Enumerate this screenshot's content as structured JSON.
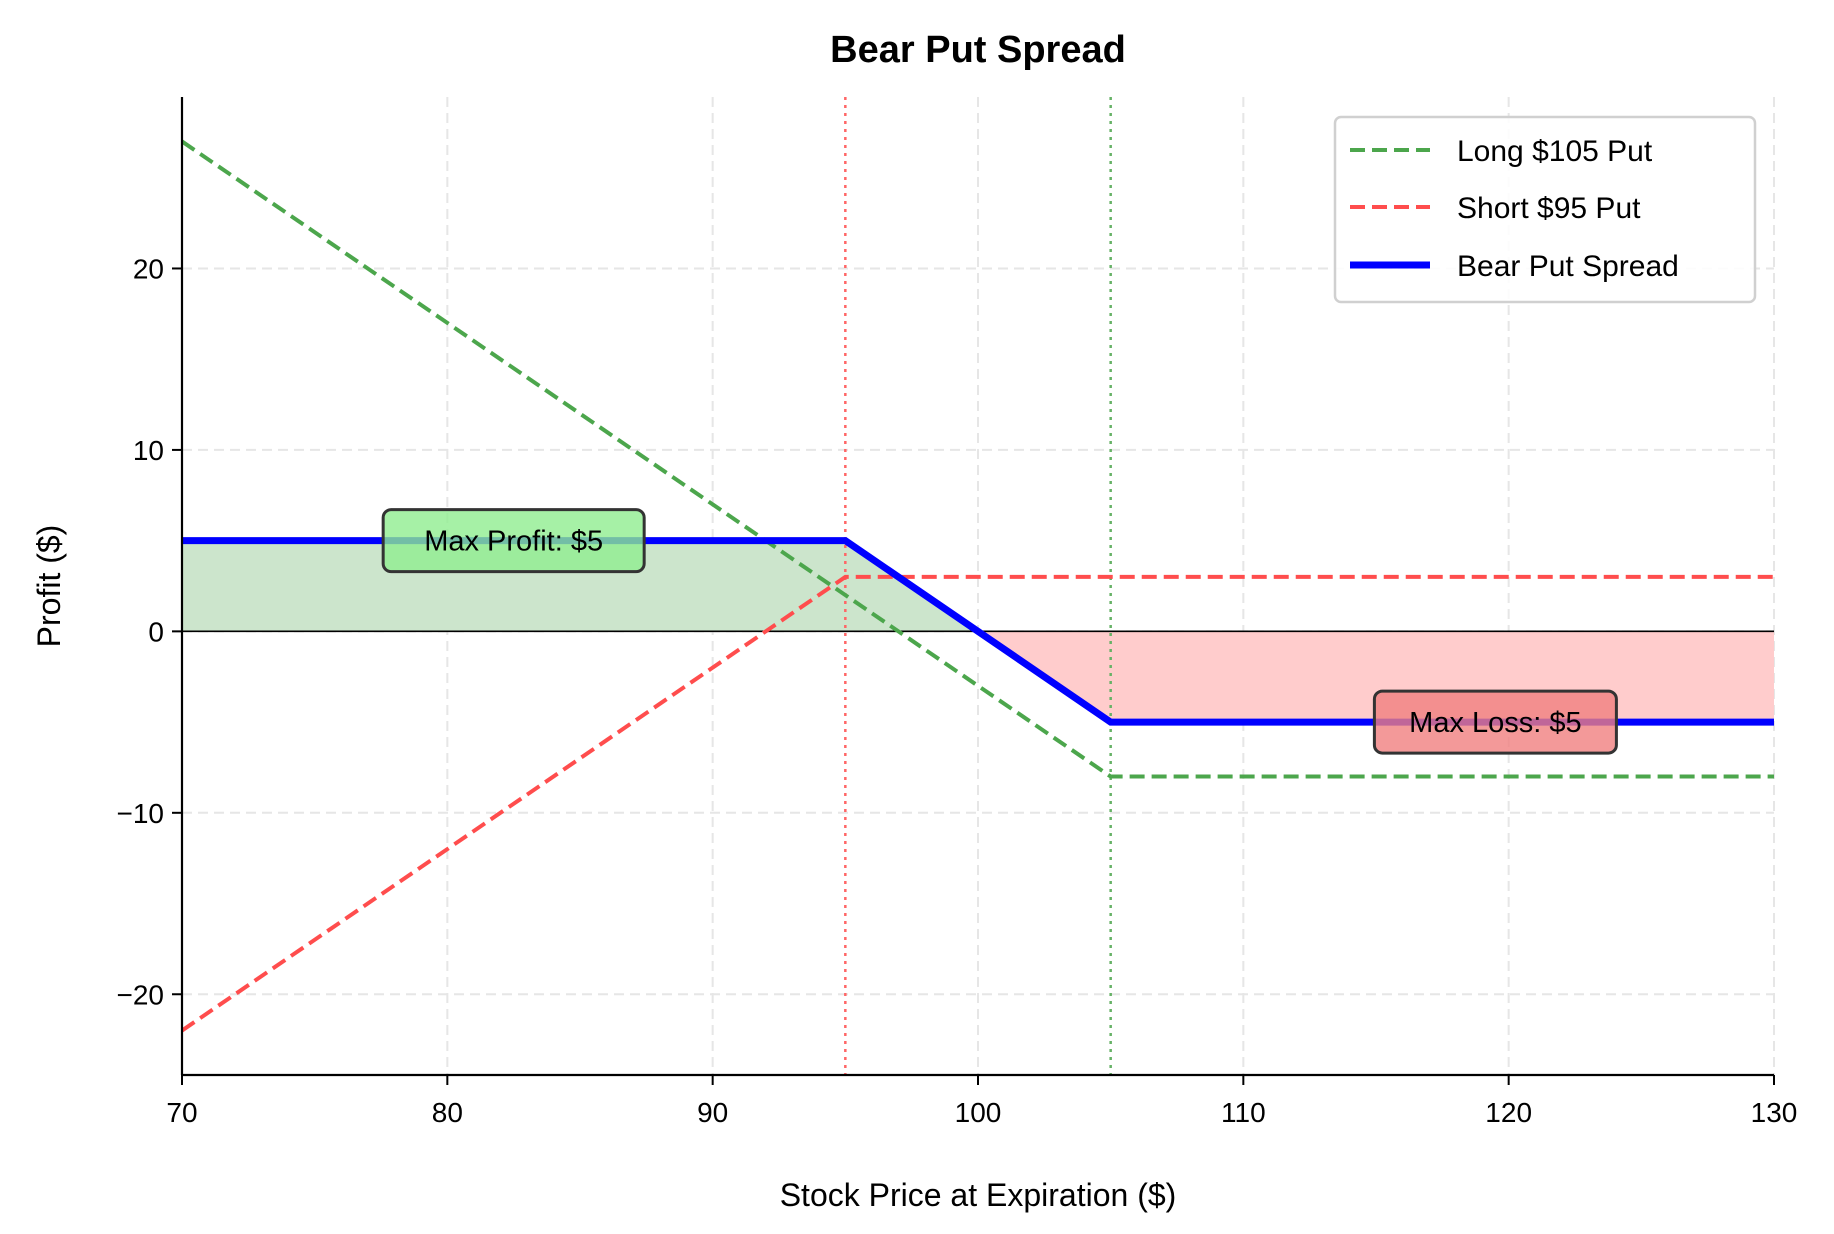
{
  "chart_data": {
    "type": "line",
    "title": "Bear Put Spread",
    "xlabel": "Stock Price at Expiration ($)",
    "ylabel": "Profit ($)",
    "xlim": [
      70,
      130
    ],
    "ylim": [
      -24.45,
      29.45
    ],
    "xticks": [
      70,
      80,
      90,
      100,
      110,
      120,
      130
    ],
    "yticks": [
      -20,
      -10,
      0,
      10,
      20
    ],
    "xtick_labels": [
      "70",
      "80",
      "90",
      "100",
      "110",
      "120",
      "130"
    ],
    "ytick_labels": [
      "−20",
      "−10",
      "0",
      "10",
      "20"
    ],
    "grid": true,
    "legend_position": "upper right",
    "series": [
      {
        "name": "Long $105 Put",
        "style": "dashed",
        "color": "#4ca64c",
        "x": [
          70,
          105,
          130
        ],
        "y": [
          27,
          -8,
          -8
        ]
      },
      {
        "name": "Short $95 Put",
        "style": "dashed",
        "color": "#ff4d4d",
        "x": [
          70,
          95,
          130
        ],
        "y": [
          -22,
          3,
          3
        ]
      },
      {
        "name": "Bear Put Spread",
        "style": "solid",
        "color": "#0000ff",
        "x": [
          70,
          95,
          105,
          130
        ],
        "y": [
          5,
          5,
          -5,
          -5
        ]
      }
    ],
    "reference_lines": [
      {
        "type": "vertical",
        "x": 95,
        "style": "dotted",
        "color": "#ff6666"
      },
      {
        "type": "vertical",
        "x": 105,
        "style": "dotted",
        "color": "#66b266"
      },
      {
        "type": "horizontal",
        "y": 0,
        "style": "solid",
        "color": "#000000"
      }
    ],
    "fills": [
      {
        "name": "profit-region",
        "color": "#cce5cc",
        "x_range": [
          70,
          100
        ],
        "between": "spread_and_zero_positive"
      },
      {
        "name": "loss-region",
        "color": "#ffcccc",
        "x_range": [
          100,
          130
        ],
        "between": "spread_and_zero_negative"
      }
    ],
    "annotations": [
      {
        "text": "Max Profit: $5",
        "x": 82.5,
        "y": 5,
        "box_color": "#90ee90"
      },
      {
        "text": "Max Loss: $5",
        "x": 119.5,
        "y": -5,
        "box_color": "#f08080"
      }
    ]
  }
}
